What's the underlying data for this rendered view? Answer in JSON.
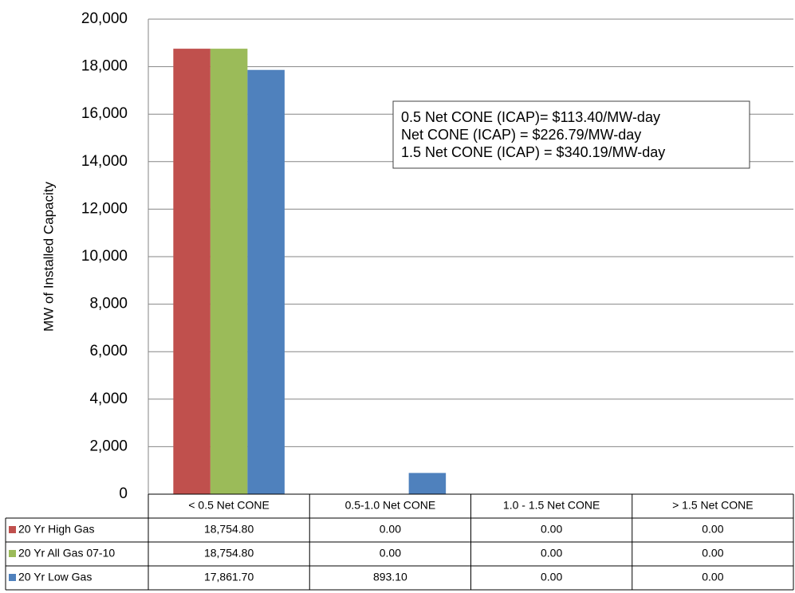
{
  "chart_data": {
    "type": "bar",
    "y_label": "MW of Installed Capacity",
    "categories": [
      "< 0.5 Net CONE",
      "0.5-1.0 Net CONE",
      "1.0 - 1.5 Net CONE",
      "> 1.5 Net CONE"
    ],
    "series": [
      {
        "name": "20 Yr High Gas",
        "color": "#c0504d",
        "values": [
          18754.8,
          0,
          0,
          0
        ],
        "value_labels": [
          "18,754.80",
          "0.00",
          "0.00",
          "0.00"
        ]
      },
      {
        "name": "20 Yr All Gas 07-10",
        "color": "#9bbb59",
        "values": [
          18754.8,
          0,
          0,
          0
        ],
        "value_labels": [
          "18,754.80",
          "0.00",
          "0.00",
          "0.00"
        ]
      },
      {
        "name": "20 Yr Low Gas",
        "color": "#4f81bd",
        "values": [
          17861.7,
          893.1,
          0,
          0
        ],
        "value_labels": [
          "17,861.70",
          "893.10",
          "0.00",
          "0.00"
        ]
      }
    ],
    "ylim": [
      0,
      20000
    ],
    "yticks": [
      0,
      {
        "value": 2000,
        "label": "2,000"
      },
      {
        "value": 4000,
        "label": "4,000"
      },
      {
        "value": 6000,
        "label": "6,000"
      },
      {
        "value": 8000,
        "label": "8,000"
      },
      {
        "value": 10000,
        "label": "10,000"
      },
      {
        "value": 12000,
        "label": "12,000"
      },
      {
        "value": 14000,
        "label": "14,000"
      },
      {
        "value": 16000,
        "label": "16,000"
      },
      {
        "value": 18000,
        "label": "18,000"
      },
      {
        "value": 20000,
        "label": "20,000"
      }
    ],
    "grid": true,
    "annotation": [
      "0.5 Net CONE (ICAP)= $113.40/MW-day",
      "Net CONE (ICAP) = $226.79/MW-day",
      "1.5 Net CONE (ICAP) = $340.19/MW-day"
    ]
  }
}
